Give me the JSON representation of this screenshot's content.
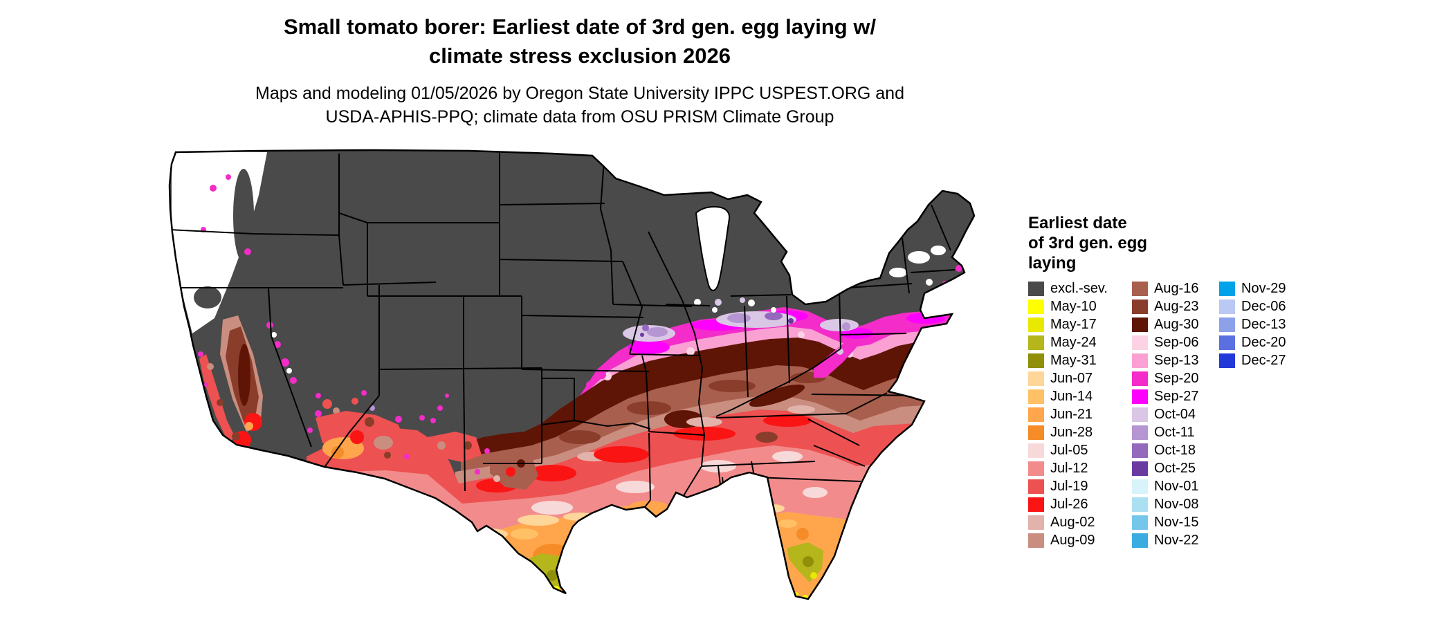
{
  "header": {
    "title_line1": "Small tomato borer: Earliest date of 3rd gen. egg laying w/",
    "title_line2": "climate stress exclusion 2026",
    "subtitle_line1": "Maps and modeling 01/05/2026 by Oregon State University IPPC USPEST.ORG and",
    "subtitle_line2": "USDA-APHIS-PPQ; climate data from OSU PRISM Climate Group"
  },
  "legend": {
    "title_line1": "Earliest date",
    "title_line2": "of 3rd gen. egg",
    "title_line3": "laying",
    "columns": [
      [
        {
          "label": "excl.-sev.",
          "key": "excl"
        },
        {
          "label": "May-10",
          "key": "may10"
        },
        {
          "label": "May-17",
          "key": "may17"
        },
        {
          "label": "May-24",
          "key": "may24"
        },
        {
          "label": "May-31",
          "key": "may31"
        },
        {
          "label": "Jun-07",
          "key": "jun07"
        },
        {
          "label": "Jun-14",
          "key": "jun14"
        },
        {
          "label": "Jun-21",
          "key": "jun21"
        },
        {
          "label": "Jun-28",
          "key": "jun28"
        },
        {
          "label": "Jul-05",
          "key": "jul05"
        },
        {
          "label": "Jul-12",
          "key": "jul12"
        },
        {
          "label": "Jul-19",
          "key": "jul19"
        },
        {
          "label": "Jul-26",
          "key": "jul26"
        },
        {
          "label": "Aug-02",
          "key": "aug02"
        },
        {
          "label": "Aug-09",
          "key": "aug09"
        }
      ],
      [
        {
          "label": "Aug-16",
          "key": "aug16"
        },
        {
          "label": "Aug-23",
          "key": "aug23"
        },
        {
          "label": "Aug-30",
          "key": "aug30"
        },
        {
          "label": "Sep-06",
          "key": "sep06"
        },
        {
          "label": "Sep-13",
          "key": "sep13"
        },
        {
          "label": "Sep-20",
          "key": "sep20"
        },
        {
          "label": "Sep-27",
          "key": "sep27"
        },
        {
          "label": "Oct-04",
          "key": "oct04"
        },
        {
          "label": "Oct-11",
          "key": "oct11"
        },
        {
          "label": "Oct-18",
          "key": "oct18"
        },
        {
          "label": "Oct-25",
          "key": "oct25"
        },
        {
          "label": "Nov-01",
          "key": "nov01"
        },
        {
          "label": "Nov-08",
          "key": "nov08"
        },
        {
          "label": "Nov-15",
          "key": "nov15"
        },
        {
          "label": "Nov-22",
          "key": "nov22"
        }
      ],
      [
        {
          "label": "Nov-29",
          "key": "nov29"
        },
        {
          "label": "Dec-06",
          "key": "dec06"
        },
        {
          "label": "Dec-13",
          "key": "dec13"
        },
        {
          "label": "Dec-20",
          "key": "dec20"
        },
        {
          "label": "Dec-27",
          "key": "dec27"
        }
      ]
    ]
  },
  "palette": {
    "excl": "#4a4a4a",
    "nodata": "#ffffff",
    "may10": "#ffff00",
    "may17": "#e8e800",
    "may24": "#b5b51c",
    "may31": "#8f8f0a",
    "jun07": "#ffd699",
    "jun14": "#ffc066",
    "jun21": "#ffa64d",
    "jun28": "#f58c28",
    "jul05": "#f8d9d9",
    "jul12": "#f28c8c",
    "jul19": "#ee5151",
    "jul26": "#fb1414",
    "aug02": "#e2b3aa",
    "aug09": "#c98e80",
    "aug16": "#a95f4e",
    "aug23": "#8a3d2b",
    "aug30": "#5e1505",
    "sep06": "#fcd2e4",
    "sep13": "#faa0d2",
    "sep20": "#f32cca",
    "sep27": "#ff00ff",
    "oct04": "#d9c7e5",
    "oct11": "#b695d3",
    "oct18": "#9468bd",
    "oct25": "#6a3aa1",
    "nov01": "#d8f3fa",
    "nov08": "#abdff2",
    "nov15": "#74c7ea",
    "nov22": "#3aacdf",
    "nov29": "#00a2e8",
    "dec06": "#b9c9f3",
    "dec13": "#8ca1ea",
    "dec20": "#5a70e0",
    "dec27": "#2338d8"
  }
}
